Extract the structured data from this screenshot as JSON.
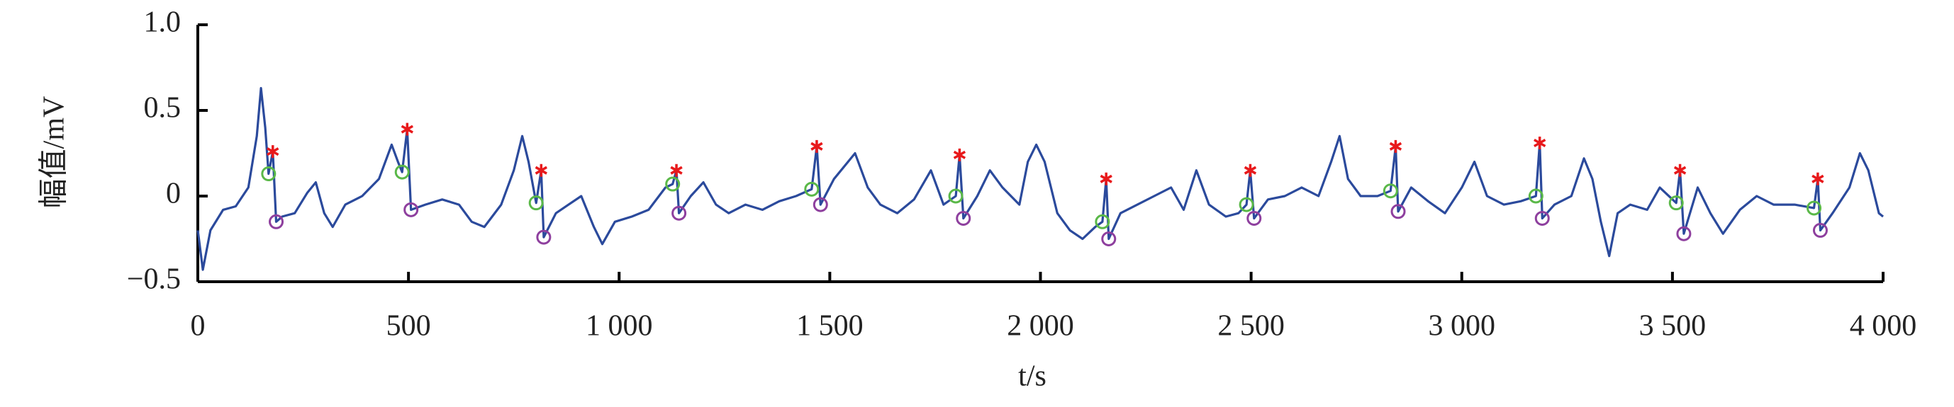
{
  "chart_data": {
    "type": "line",
    "xlabel": "t/s",
    "ylabel": "幅值/mV",
    "xlim": [
      0,
      4000
    ],
    "ylim": [
      -0.5,
      1.0
    ],
    "xticks": [
      0,
      500,
      {
        "value": 1000,
        "label": "1 000"
      },
      {
        "value": 1500,
        "label": "1 500"
      },
      {
        "value": 2000,
        "label": "2 000"
      },
      {
        "value": 2500,
        "label": "2 500"
      },
      {
        "value": 3000,
        "label": "3 000"
      },
      {
        "value": 3500,
        "label": "3 500"
      },
      {
        "value": 4000,
        "label": "4 000"
      }
    ],
    "yticks": [
      {
        "value": -0.5,
        "label": "−0.5"
      },
      0,
      0.5,
      {
        "value": 1.0,
        "label": "1.0"
      }
    ],
    "x": [
      0,
      12,
      30,
      60,
      90,
      120,
      140,
      150,
      160,
      168,
      178,
      186,
      200,
      230,
      260,
      280,
      300,
      320,
      350,
      390,
      430,
      460,
      475,
      485,
      497,
      506,
      540,
      580,
      620,
      650,
      680,
      720,
      750,
      770,
      785,
      803,
      815,
      821,
      850,
      880,
      910,
      940,
      960,
      990,
      1030,
      1070,
      1110,
      1127,
      1136,
      1142,
      1170,
      1200,
      1230,
      1260,
      1300,
      1340,
      1380,
      1420,
      1457,
      1469,
      1478,
      1510,
      1560,
      1590,
      1620,
      1660,
      1700,
      1740,
      1770,
      1799,
      1808,
      1817,
      1850,
      1880,
      1910,
      1950,
      1970,
      1990,
      2010,
      2040,
      2070,
      2100,
      2130,
      2147,
      2156,
      2162,
      2190,
      2230,
      2270,
      2310,
      2340,
      2370,
      2400,
      2440,
      2470,
      2489,
      2498,
      2507,
      2540,
      2580,
      2620,
      2660,
      2690,
      2710,
      2730,
      2760,
      2800,
      2831,
      2843,
      2849,
      2880,
      2920,
      2960,
      3000,
      3030,
      3060,
      3100,
      3140,
      3176,
      3185,
      3191,
      3220,
      3260,
      3290,
      3310,
      3330,
      3350,
      3370,
      3400,
      3440,
      3470,
      3509,
      3518,
      3527,
      3560,
      3590,
      3620,
      3660,
      3700,
      3740,
      3790,
      3836,
      3845,
      3851,
      3880,
      3920,
      3945,
      3965,
      3990,
      4000
    ],
    "series": [
      {
        "color": "#2b4a9c",
        "values": [
          -0.2,
          -0.43,
          -0.2,
          -0.08,
          -0.06,
          0.05,
          0.35,
          0.63,
          0.4,
          0.13,
          0.26,
          -0.15,
          -0.12,
          -0.1,
          0.02,
          0.08,
          -0.1,
          -0.18,
          -0.05,
          0.0,
          0.1,
          0.3,
          0.2,
          0.14,
          0.39,
          -0.08,
          -0.05,
          -0.02,
          -0.05,
          -0.15,
          -0.18,
          -0.05,
          0.15,
          0.35,
          0.2,
          -0.04,
          0.15,
          -0.24,
          -0.1,
          -0.05,
          0.0,
          -0.18,
          -0.28,
          -0.15,
          -0.12,
          -0.08,
          0.05,
          0.07,
          0.15,
          -0.1,
          0.0,
          0.08,
          -0.05,
          -0.1,
          -0.05,
          -0.08,
          -0.03,
          0.0,
          0.04,
          0.29,
          -0.05,
          0.1,
          0.25,
          0.05,
          -0.05,
          -0.1,
          -0.02,
          0.15,
          -0.05,
          0.0,
          0.24,
          -0.13,
          0.0,
          0.15,
          0.05,
          -0.05,
          0.2,
          0.3,
          0.2,
          -0.1,
          -0.2,
          -0.25,
          -0.18,
          -0.15,
          0.1,
          -0.25,
          -0.1,
          -0.05,
          0.0,
          0.05,
          -0.08,
          0.15,
          -0.05,
          -0.12,
          -0.1,
          -0.05,
          0.15,
          -0.13,
          -0.02,
          0.0,
          0.05,
          0.0,
          0.2,
          0.35,
          0.1,
          0.0,
          0.0,
          0.03,
          0.29,
          -0.09,
          0.05,
          -0.03,
          -0.1,
          0.05,
          0.2,
          0.0,
          -0.05,
          -0.03,
          0.0,
          0.31,
          -0.13,
          -0.05,
          0.0,
          0.22,
          0.1,
          -0.15,
          -0.35,
          -0.1,
          -0.05,
          -0.08,
          0.05,
          -0.04,
          0.15,
          -0.22,
          0.05,
          -0.1,
          -0.22,
          -0.08,
          0.0,
          -0.05,
          -0.05,
          -0.07,
          0.1,
          -0.2,
          -0.1,
          0.05,
          0.25,
          0.15,
          -0.1,
          -0.12
        ]
      }
    ],
    "markers": [
      {
        "marker": "asterisk",
        "color": "#e8191b",
        "x": [
          178,
          497,
          815,
          1136,
          1469,
          1808,
          2156,
          2498,
          2843,
          3185,
          3518,
          3845
        ],
        "values": [
          0.26,
          0.39,
          0.15,
          0.15,
          0.29,
          0.24,
          0.1,
          0.15,
          0.29,
          0.31,
          0.15,
          0.1
        ]
      },
      {
        "marker": "circle",
        "color": "#5ab848",
        "x": [
          168,
          485,
          803,
          1127,
          1457,
          1799,
          2147,
          2489,
          2831,
          3176,
          3509,
          3836
        ],
        "values": [
          0.13,
          0.14,
          -0.04,
          0.07,
          0.04,
          0.0,
          -0.15,
          -0.05,
          0.03,
          0.0,
          -0.04,
          -0.07
        ]
      },
      {
        "marker": "circle",
        "color": "#8e3f9e",
        "x": [
          186,
          506,
          821,
          1142,
          1478,
          1817,
          2162,
          2507,
          2849,
          3191,
          3527,
          3851
        ],
        "values": [
          -0.15,
          -0.08,
          -0.24,
          -0.1,
          -0.05,
          -0.13,
          -0.25,
          -0.13,
          -0.09,
          -0.13,
          -0.22,
          -0.2
        ]
      }
    ]
  }
}
